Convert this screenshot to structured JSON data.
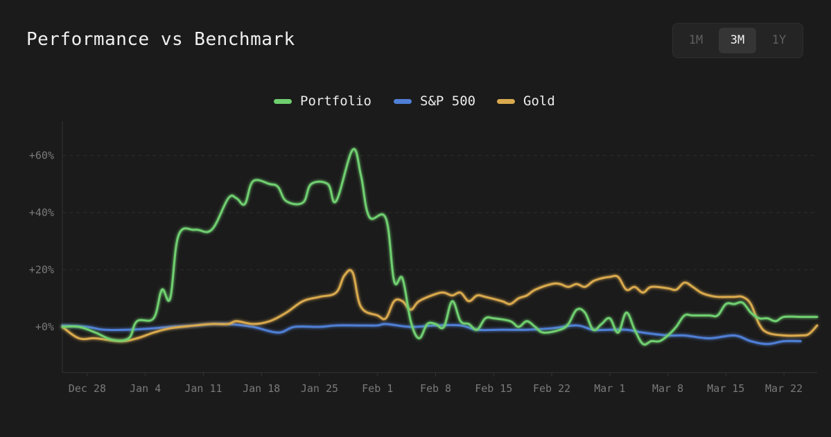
{
  "header": {
    "title": "Performance vs Benchmark"
  },
  "range_selector": {
    "options": [
      "1M",
      "3M",
      "1Y"
    ],
    "selected": "3M"
  },
  "colors": {
    "Portfolio": "#6fcf6f",
    "S&P 500": "#4f7fd6",
    "Gold": "#d9a94e",
    "grid": "#2c2c2c",
    "axis": "#333333",
    "tick_text": "#7a7a7a"
  },
  "chart_data": {
    "type": "line",
    "title": "Performance vs Benchmark",
    "legend": [
      "Portfolio",
      "S&P 500",
      "Gold"
    ],
    "legend_position": "top-center",
    "xlim": [
      "Dec 25",
      "Mar 26"
    ],
    "ylim": [
      -16,
      72
    ],
    "y_ticks": [
      0,
      20,
      40,
      60
    ],
    "y_tick_labels": [
      "+0%",
      "+20%",
      "+40%",
      "+60%"
    ],
    "x_tick_labels": [
      "Dec 28",
      "Jan 4",
      "Jan 11",
      "Jan 18",
      "Jan 25",
      "Feb 1",
      "Feb 8",
      "Feb 15",
      "Feb 22",
      "Mar 1",
      "Mar 8",
      "Mar 15",
      "Mar 22"
    ],
    "grid": "horizontal-dashed",
    "series": [
      {
        "name": "Portfolio",
        "points": [
          [
            "Dec 25",
            0
          ],
          [
            "Dec 27",
            0
          ],
          [
            "Dec 29",
            -2
          ],
          [
            "Dec 31",
            -4.5
          ],
          [
            "Jan 2",
            -4
          ],
          [
            "Jan 3",
            2
          ],
          [
            "Jan 5",
            3
          ],
          [
            "Jan 6",
            13
          ],
          [
            "Jan 7",
            10
          ],
          [
            "Jan 8",
            32
          ],
          [
            "Jan 10",
            34
          ],
          [
            "Jan 12",
            34
          ],
          [
            "Jan 14",
            45
          ],
          [
            "Jan 15",
            45
          ],
          [
            "Jan 16",
            43
          ],
          [
            "Jan 17",
            51
          ],
          [
            "Jan 19",
            50
          ],
          [
            "Jan 20",
            49
          ],
          [
            "Jan 21",
            44
          ],
          [
            "Jan 23",
            43.5
          ],
          [
            "Jan 24",
            50
          ],
          [
            "Jan 26",
            50
          ],
          [
            "Jan 27",
            44
          ],
          [
            "Jan 29",
            62
          ],
          [
            "Jan 30",
            53
          ],
          [
            "Jan 31",
            38.5
          ],
          [
            "Feb 2",
            38
          ],
          [
            "Feb 3",
            16
          ],
          [
            "Feb 4",
            17
          ],
          [
            "Feb 5",
            2
          ],
          [
            "Feb 6",
            -4
          ],
          [
            "Feb 7",
            1
          ],
          [
            "Feb 8",
            1
          ],
          [
            "Feb 9",
            0
          ],
          [
            "Feb 10",
            9
          ],
          [
            "Feb 11",
            2
          ],
          [
            "Feb 12",
            1
          ],
          [
            "Feb 13",
            -1
          ],
          [
            "Feb 14",
            3
          ],
          [
            "Feb 15",
            3
          ],
          [
            "Feb 17",
            2
          ],
          [
            "Feb 18",
            0
          ],
          [
            "Feb 19",
            2
          ],
          [
            "Feb 20",
            0
          ],
          [
            "Feb 21",
            -2
          ],
          [
            "Feb 23",
            -1
          ],
          [
            "Feb 24",
            1
          ],
          [
            "Feb 25",
            6
          ],
          [
            "Feb 26",
            5
          ],
          [
            "Feb 27",
            -1
          ],
          [
            "Feb 28",
            1
          ],
          [
            "Mar 1",
            3
          ],
          [
            "Mar 2",
            -2
          ],
          [
            "Mar 3",
            5
          ],
          [
            "Mar 4",
            -1
          ],
          [
            "Mar 5",
            -6
          ],
          [
            "Mar 6",
            -5
          ],
          [
            "Mar 7",
            -5
          ],
          [
            "Mar 8",
            -3
          ],
          [
            "Mar 9",
            0
          ],
          [
            "Mar 10",
            4
          ],
          [
            "Mar 11",
            4
          ],
          [
            "Mar 13",
            4
          ],
          [
            "Mar 14",
            4
          ],
          [
            "Mar 15",
            8
          ],
          [
            "Mar 16",
            8
          ],
          [
            "Mar 17",
            8.5
          ],
          [
            "Mar 18",
            5
          ],
          [
            "Mar 19",
            3
          ],
          [
            "Mar 20",
            3
          ],
          [
            "Mar 21",
            2
          ],
          [
            "Mar 22",
            3.5
          ],
          [
            "Mar 24",
            3.5
          ],
          [
            "Mar 26",
            3.5
          ]
        ]
      },
      {
        "name": "S&P 500",
        "points": [
          [
            "Dec 25",
            0.5
          ],
          [
            "Dec 28",
            0
          ],
          [
            "Dec 30",
            -1
          ],
          [
            "Jan 2",
            -1
          ],
          [
            "Jan 5",
            -0.5
          ],
          [
            "Jan 7",
            0
          ],
          [
            "Jan 10",
            0.5
          ],
          [
            "Jan 12",
            1
          ],
          [
            "Jan 14",
            1
          ],
          [
            "Jan 17",
            0
          ],
          [
            "Jan 20",
            -2
          ],
          [
            "Jan 22",
            0
          ],
          [
            "Jan 25",
            0
          ],
          [
            "Jan 27",
            0.5
          ],
          [
            "Jan 30",
            0.5
          ],
          [
            "Feb 1",
            0.5
          ],
          [
            "Feb 2",
            1
          ],
          [
            "Feb 5",
            0
          ],
          [
            "Feb 8",
            0.5
          ],
          [
            "Feb 11",
            0.5
          ],
          [
            "Feb 13",
            -1
          ],
          [
            "Feb 16",
            -1
          ],
          [
            "Feb 19",
            -1
          ],
          [
            "Feb 22",
            -0.5
          ],
          [
            "Feb 25",
            0.5
          ],
          [
            "Feb 27",
            -1
          ],
          [
            "Mar 1",
            -1
          ],
          [
            "Mar 3",
            -1
          ],
          [
            "Mar 5",
            -2
          ],
          [
            "Mar 8",
            -3
          ],
          [
            "Mar 10",
            -3
          ],
          [
            "Mar 13",
            -4
          ],
          [
            "Mar 16",
            -3
          ],
          [
            "Mar 18",
            -5
          ],
          [
            "Mar 20",
            -6
          ],
          [
            "Mar 22",
            -5
          ],
          [
            "Mar 24",
            -5
          ]
        ]
      },
      {
        "name": "Gold",
        "points": [
          [
            "Dec 25",
            0
          ],
          [
            "Dec 27",
            -4
          ],
          [
            "Dec 29",
            -4
          ],
          [
            "Jan 1",
            -5
          ],
          [
            "Jan 3",
            -4
          ],
          [
            "Jan 5",
            -2
          ],
          [
            "Jan 7",
            -0.5
          ],
          [
            "Jan 10",
            0.5
          ],
          [
            "Jan 12",
            1
          ],
          [
            "Jan 14",
            1
          ],
          [
            "Jan 15",
            2
          ],
          [
            "Jan 17",
            1
          ],
          [
            "Jan 19",
            2
          ],
          [
            "Jan 21",
            5
          ],
          [
            "Jan 23",
            9
          ],
          [
            "Jan 25",
            10.5
          ],
          [
            "Jan 27",
            12
          ],
          [
            "Jan 28",
            18
          ],
          [
            "Jan 29",
            19
          ],
          [
            "Jan 30",
            7
          ],
          [
            "Feb 1",
            4
          ],
          [
            "Feb 2",
            3
          ],
          [
            "Feb 3",
            9
          ],
          [
            "Feb 4",
            9
          ],
          [
            "Feb 5",
            6
          ],
          [
            "Feb 6",
            9
          ],
          [
            "Feb 8",
            11.5
          ],
          [
            "Feb 9",
            12
          ],
          [
            "Feb 10",
            11
          ],
          [
            "Feb 11",
            12
          ],
          [
            "Feb 12",
            9
          ],
          [
            "Feb 13",
            11
          ],
          [
            "Feb 14",
            10.5
          ],
          [
            "Feb 16",
            9
          ],
          [
            "Feb 17",
            8
          ],
          [
            "Feb 18",
            10
          ],
          [
            "Feb 19",
            11
          ],
          [
            "Feb 20",
            13
          ],
          [
            "Feb 22",
            15
          ],
          [
            "Feb 23",
            15
          ],
          [
            "Feb 24",
            14
          ],
          [
            "Feb 25",
            15
          ],
          [
            "Feb 26",
            14
          ],
          [
            "Feb 27",
            16
          ],
          [
            "Feb 28",
            17
          ],
          [
            "Mar 1",
            17.5
          ],
          [
            "Mar 2",
            17.5
          ],
          [
            "Mar 3",
            13
          ],
          [
            "Mar 4",
            14
          ],
          [
            "Mar 5",
            12
          ],
          [
            "Mar 6",
            14
          ],
          [
            "Mar 8",
            13.5
          ],
          [
            "Mar 9",
            13
          ],
          [
            "Mar 10",
            15.5
          ],
          [
            "Mar 11",
            14
          ],
          [
            "Mar 12",
            12
          ],
          [
            "Mar 13",
            11
          ],
          [
            "Mar 14",
            10.5
          ],
          [
            "Mar 16",
            10.5
          ],
          [
            "Mar 17",
            10.5
          ],
          [
            "Mar 18",
            8
          ],
          [
            "Mar 19",
            1
          ],
          [
            "Mar 20",
            -2
          ],
          [
            "Mar 22",
            -3
          ],
          [
            "Mar 24",
            -3
          ],
          [
            "Mar 25",
            -2.5
          ],
          [
            "Mar 26",
            0.5
          ]
        ]
      }
    ]
  }
}
